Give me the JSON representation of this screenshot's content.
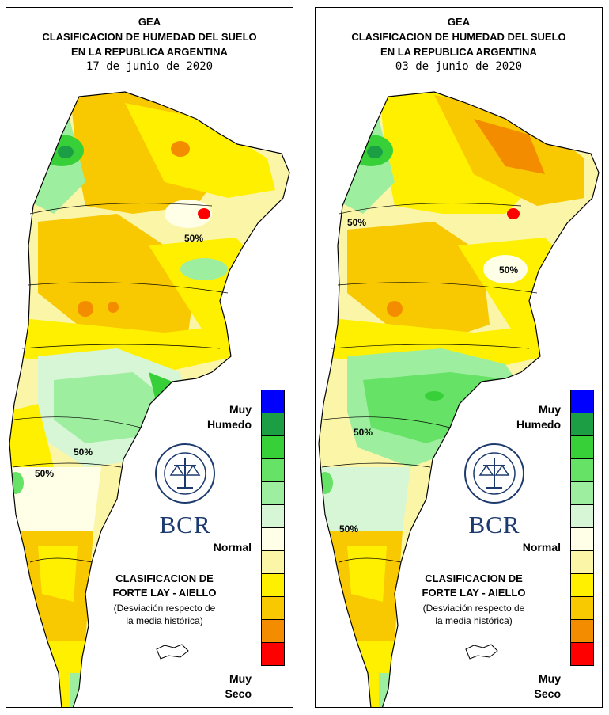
{
  "panels": [
    {
      "title_lines": [
        "GEA",
        "CLASIFICACION DE HUMEDAD DEL SUELO",
        "EN LA REPUBLICA ARGENTINA"
      ],
      "date": "17 de junio de 2020",
      "contour_labels": [
        "50%",
        "50%",
        "50%"
      ]
    },
    {
      "title_lines": [
        "GEA",
        "CLASIFICACION DE HUMEDAD DEL SUELO",
        "EN LA REPUBLICA ARGENTINA"
      ],
      "date": "03 de junio de 2020",
      "contour_labels": [
        "50%",
        "50%",
        "50%",
        "50%"
      ]
    }
  ],
  "legend": {
    "colors": [
      "#0000ff",
      "#1c9e44",
      "#38d038",
      "#66e266",
      "#9eeea0",
      "#d6f6d6",
      "#ffffe8",
      "#fbf5a8",
      "#fff000",
      "#f8c800",
      "#f48c00",
      "#ff0000"
    ],
    "label_wet_1": "Muy",
    "label_wet_2": "Humedo",
    "label_normal": "Normal",
    "label_dry_1": "Muy",
    "label_dry_2": "Seco"
  },
  "classification": {
    "line1": "CLASIFICACION DE",
    "line2": "FORTE LAY - AIELLO",
    "line3": "(Desviación respecto de",
    "line4": "la media histórica)"
  },
  "logo": {
    "text": "BCR",
    "seal_text": "BOLSA DE COMERCIO DE ROSARIO"
  }
}
